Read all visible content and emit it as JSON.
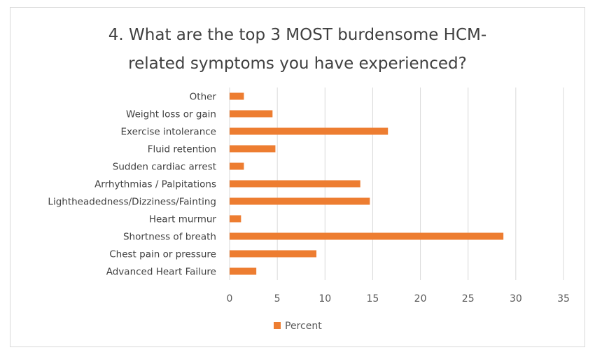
{
  "chart_data": {
    "type": "bar",
    "orientation": "horizontal",
    "title_line1": "4. What are the top 3 MOST burdensome  HCM-",
    "title_line2": "related symptoms you have experienced?",
    "categories": [
      "Other",
      "Weight loss or gain",
      "Exercise intolerance",
      "Fluid retention",
      "Sudden cardiac arrest",
      "Arrhythmias / Palpitations",
      "Lightheadedness/Dizziness/Fainting",
      "Heart murmur",
      "Shortness of breath",
      "Chest pain or pressure",
      "Advanced Heart Failure"
    ],
    "series": [
      {
        "name": "Percent",
        "color": "#ed7d31",
        "values": [
          1.5,
          4.5,
          16.6,
          4.8,
          1.5,
          13.7,
          14.7,
          1.2,
          28.7,
          9.1,
          2.8
        ]
      }
    ],
    "xlim": [
      0,
      35
    ],
    "xticks": [
      "0",
      "5",
      "10",
      "15",
      "20",
      "25",
      "30",
      "35"
    ],
    "grid": true,
    "legend": "bottom"
  }
}
